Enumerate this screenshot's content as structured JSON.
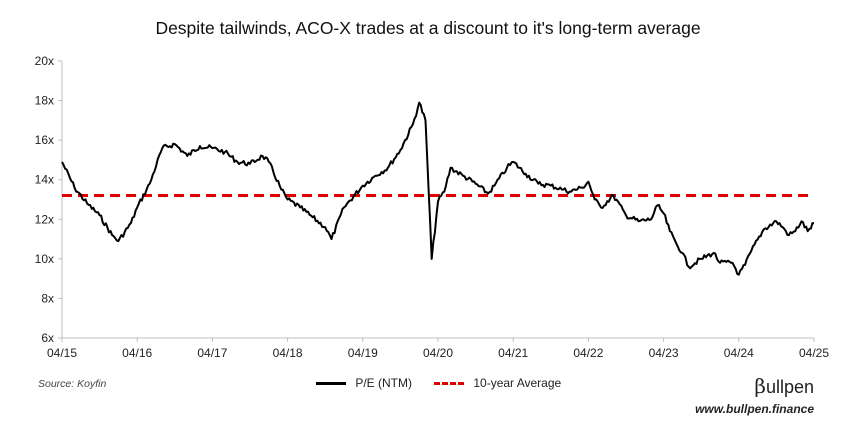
{
  "chart_data": {
    "type": "line",
    "title": "Despite tailwinds, ACO-X trades at a discount to it's long-term average",
    "xlabel": "",
    "ylabel": "",
    "ylim": [
      6,
      20
    ],
    "y_ticks": [
      "6x",
      "8x",
      "10x",
      "12x",
      "14x",
      "16x",
      "18x",
      "20x"
    ],
    "x_ticks": [
      "04/15",
      "04/16",
      "04/17",
      "04/18",
      "04/19",
      "04/20",
      "04/21",
      "04/22",
      "04/23",
      "04/24",
      "04/25"
    ],
    "grid": false,
    "legend_position": "bottom",
    "series": [
      {
        "name": "P/E (NTM)",
        "color": "#000000",
        "style": "solid",
        "points": [
          [
            "04/15",
            14.9
          ],
          [
            "06/15",
            13.6
          ],
          [
            "08/15",
            12.8
          ],
          [
            "10/15",
            12.2
          ],
          [
            "12/15",
            11.2
          ],
          [
            "01/16",
            10.9
          ],
          [
            "03/16",
            11.8
          ],
          [
            "04/16",
            12.6
          ],
          [
            "06/16",
            13.8
          ],
          [
            "08/16",
            15.6
          ],
          [
            "10/16",
            15.8
          ],
          [
            "12/16",
            15.2
          ],
          [
            "02/17",
            15.7
          ],
          [
            "04/17",
            15.6
          ],
          [
            "06/17",
            15.4
          ],
          [
            "08/17",
            14.9
          ],
          [
            "10/17",
            14.8
          ],
          [
            "12/17",
            15.2
          ],
          [
            "01/18",
            14.9
          ],
          [
            "03/18",
            13.5
          ],
          [
            "04/18",
            13.0
          ],
          [
            "06/18",
            12.6
          ],
          [
            "08/18",
            12.1
          ],
          [
            "10/18",
            11.6
          ],
          [
            "11/18",
            11.0
          ],
          [
            "01/19",
            12.6
          ],
          [
            "04/19",
            13.7
          ],
          [
            "06/19",
            14.2
          ],
          [
            "08/19",
            14.6
          ],
          [
            "10/19",
            15.5
          ],
          [
            "12/19",
            16.8
          ],
          [
            "01/20",
            17.9
          ],
          [
            "02/20",
            17.0
          ],
          [
            "03/20",
            10.0
          ],
          [
            "04/20",
            12.9
          ],
          [
            "05/20",
            13.4
          ],
          [
            "06/20",
            14.6
          ],
          [
            "08/20",
            14.2
          ],
          [
            "10/20",
            13.8
          ],
          [
            "12/20",
            13.3
          ],
          [
            "01/21",
            13.7
          ],
          [
            "03/21",
            14.6
          ],
          [
            "04/21",
            14.9
          ],
          [
            "06/21",
            14.3
          ],
          [
            "08/21",
            13.8
          ],
          [
            "10/21",
            13.7
          ],
          [
            "12/21",
            13.5
          ],
          [
            "01/22",
            13.4
          ],
          [
            "03/22",
            13.6
          ],
          [
            "04/22",
            13.9
          ],
          [
            "05/22",
            13.0
          ],
          [
            "06/22",
            12.6
          ],
          [
            "08/22",
            13.2
          ],
          [
            "10/22",
            12.2
          ],
          [
            "12/22",
            11.9
          ],
          [
            "02/23",
            12.0
          ],
          [
            "03/23",
            12.7
          ],
          [
            "04/23",
            12.3
          ],
          [
            "05/23",
            11.4
          ],
          [
            "06/23",
            10.8
          ],
          [
            "07/23",
            10.3
          ],
          [
            "08/23",
            9.6
          ],
          [
            "10/23",
            10.0
          ],
          [
            "12/23",
            10.3
          ],
          [
            "01/24",
            9.8
          ],
          [
            "03/24",
            9.8
          ],
          [
            "04/24",
            9.2
          ],
          [
            "05/24",
            9.7
          ],
          [
            "06/24",
            10.4
          ],
          [
            "08/24",
            11.5
          ],
          [
            "10/24",
            11.9
          ],
          [
            "11/24",
            11.6
          ],
          [
            "12/24",
            11.2
          ],
          [
            "01/25",
            11.4
          ],
          [
            "02/25",
            11.9
          ],
          [
            "03/25",
            11.4
          ],
          [
            "04/25",
            11.8
          ]
        ]
      },
      {
        "name": "10-year Average",
        "color": "#e00000",
        "style": "dashed",
        "value": 13.2
      }
    ]
  },
  "footer": {
    "source": "Source: Koyfin",
    "brand_mark": "β",
    "brand_rest": "ullpen",
    "website": "www.bullpen.finance"
  }
}
